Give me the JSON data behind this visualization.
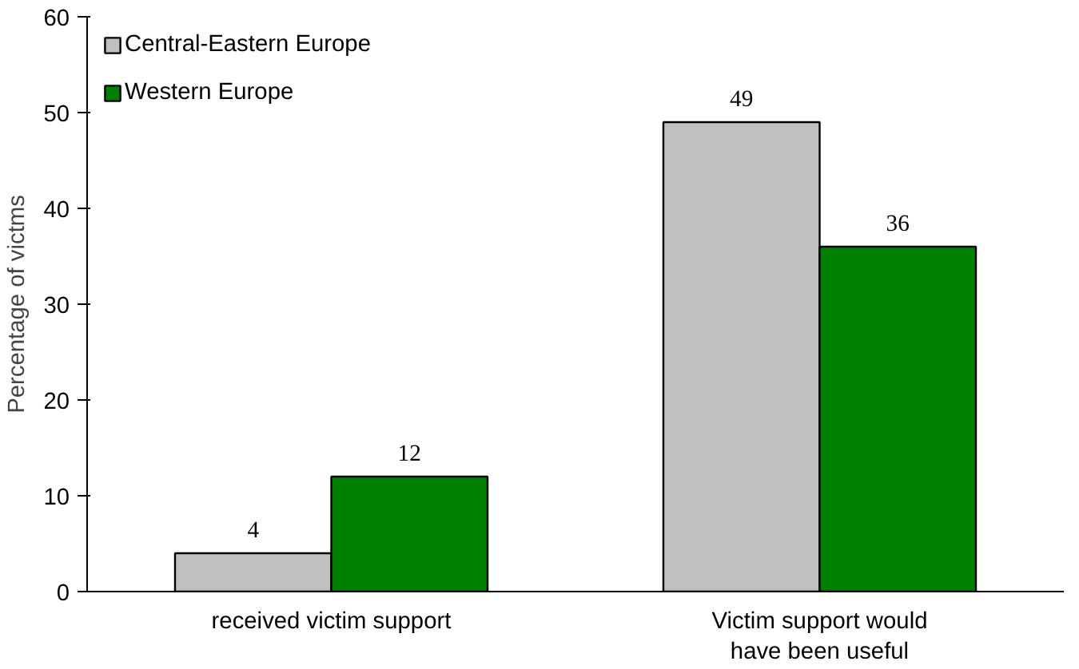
{
  "chart_data": {
    "type": "bar",
    "ylabel": "Percentage of victms",
    "categories": [
      "received victim support",
      "Victim support would have been useful"
    ],
    "series": [
      {
        "name": "Central-Eastern Europe",
        "color": "#c0c0c0",
        "values": [
          4,
          49
        ]
      },
      {
        "name": "Western Europe",
        "color": "#008000",
        "values": [
          12,
          36
        ]
      }
    ],
    "ylim": [
      0,
      60
    ],
    "yticks": [
      0,
      10,
      20,
      30,
      40,
      50,
      60
    ],
    "data_labels": true,
    "legend": "top left",
    "grid": false
  }
}
